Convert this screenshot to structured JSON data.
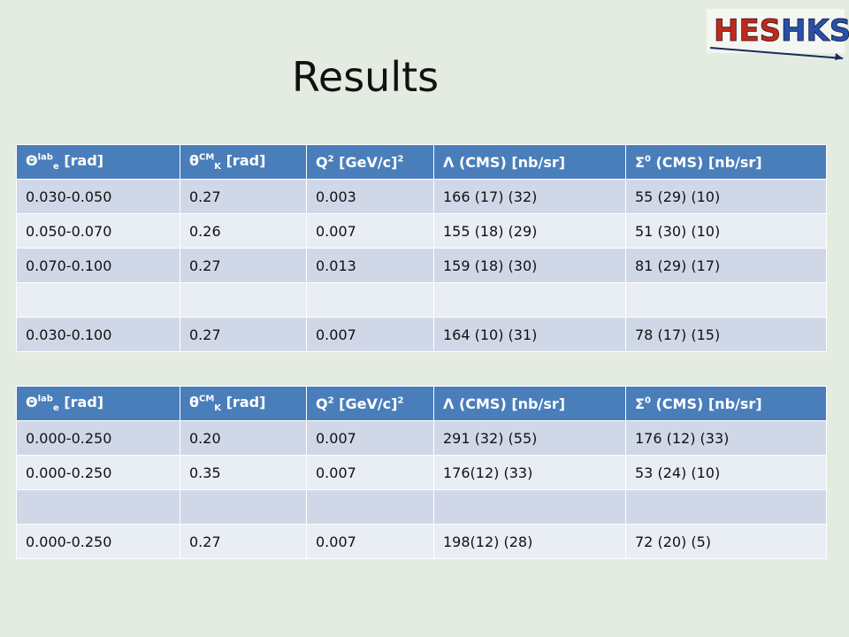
{
  "logo": {
    "part1": "HES",
    "part2": "HKS"
  },
  "title": "Results",
  "header": [
    {
      "main": "Θ",
      "sup": "lab",
      "sub": "e",
      "tail": " [rad]"
    },
    {
      "main": "θ",
      "sup": "CM",
      "sub": "K",
      "tail": " [rad]"
    },
    {
      "main": "Q",
      "sup": "2",
      "sub": "",
      "tail": " [GeV/c]",
      "sup2": "2"
    },
    {
      "main": "Λ (CMS) [nb/sr]",
      "sup": "",
      "sub": "",
      "tail": ""
    },
    {
      "main": "Σ",
      "sup": "0",
      "sub": "",
      "tail": " (CMS) [nb/sr]"
    }
  ],
  "table1": {
    "rows": [
      [
        "0.030-0.050",
        "0.27",
        "0.003",
        "166 (17) (32)",
        "55 (29) (10)"
      ],
      [
        "0.050-0.070",
        "0.26",
        "0.007",
        "155 (18) (29)",
        "51 (30) (10)"
      ],
      [
        "0.070-0.100",
        "0.27",
        "0.013",
        "159 (18) (30)",
        "81 (29) (17)"
      ],
      [
        "",
        "",
        "",
        "",
        ""
      ],
      [
        "0.030-0.100",
        "0.27",
        "0.007",
        "164 (10) (31)",
        "78 (17) (15)"
      ]
    ]
  },
  "table2": {
    "rows": [
      [
        "0.000-0.250",
        "0.20",
        "0.007",
        "291 (32) (55)",
        "176 (12) (33)"
      ],
      [
        "0.000-0.250",
        "0.35",
        "0.007",
        "176(12) (33)",
        "53 (24) (10)"
      ],
      [
        "",
        "",
        "",
        "",
        ""
      ],
      [
        "0.000-0.250",
        "0.27",
        "0.007",
        "198(12) (28)",
        "72 (20) (5)"
      ]
    ]
  }
}
